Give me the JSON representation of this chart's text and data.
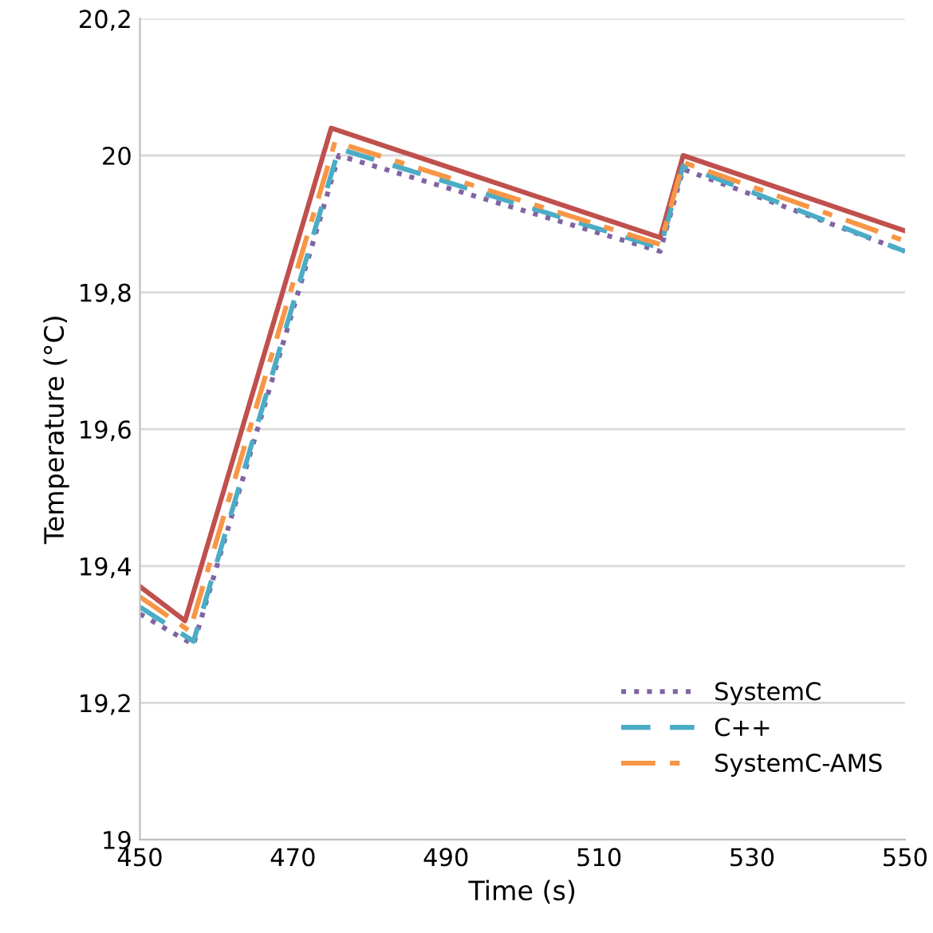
{
  "chart_data": {
    "type": "line",
    "xlabel": "Time (s)",
    "ylabel": "Temperature (°C)",
    "xlim": [
      450,
      550
    ],
    "xticks": [
      450,
      470,
      490,
      510,
      530,
      550
    ],
    "ylim": [
      19,
      20.2
    ],
    "yticks": [
      {
        "value": 19,
        "label": "19"
      },
      {
        "value": 19.2,
        "label": "19,2"
      },
      {
        "value": 19.4,
        "label": "19,4"
      },
      {
        "value": 19.6,
        "label": "19,6"
      },
      {
        "value": 19.8,
        "label": "19,8"
      },
      {
        "value": 20,
        "label": "20"
      },
      {
        "value": 20.2,
        "label": "20,2"
      }
    ],
    "grid": "y",
    "legend": "bottom right",
    "marker": "none",
    "series": [
      {
        "color": "#c0504d",
        "line_style": "solid",
        "x": [
          450,
          455.9,
          475,
          518,
          521,
          550
        ],
        "values": [
          19.37,
          19.32,
          20.04,
          19.88,
          20.0,
          19.89
        ]
      },
      {
        "name": "SystemC",
        "color": "#8064a2",
        "line_style": "dotted",
        "x": [
          450,
          457,
          476,
          518,
          521,
          550
        ],
        "values": [
          19.33,
          19.285,
          20.0,
          19.86,
          19.98,
          19.86
        ]
      },
      {
        "name": "C++",
        "color": "#4bacc6",
        "line_style": "dashed",
        "x": [
          450,
          457,
          476,
          518,
          521,
          550
        ],
        "values": [
          19.34,
          19.29,
          20.01,
          19.865,
          19.985,
          19.86
        ]
      },
      {
        "name": "SystemC-AMS",
        "color": "#f79646",
        "line_style": "dashdot",
        "x": [
          450,
          456.5,
          475.5,
          518,
          521,
          550
        ],
        "values": [
          19.355,
          19.305,
          20.02,
          19.87,
          19.99,
          19.875
        ]
      }
    ]
  }
}
